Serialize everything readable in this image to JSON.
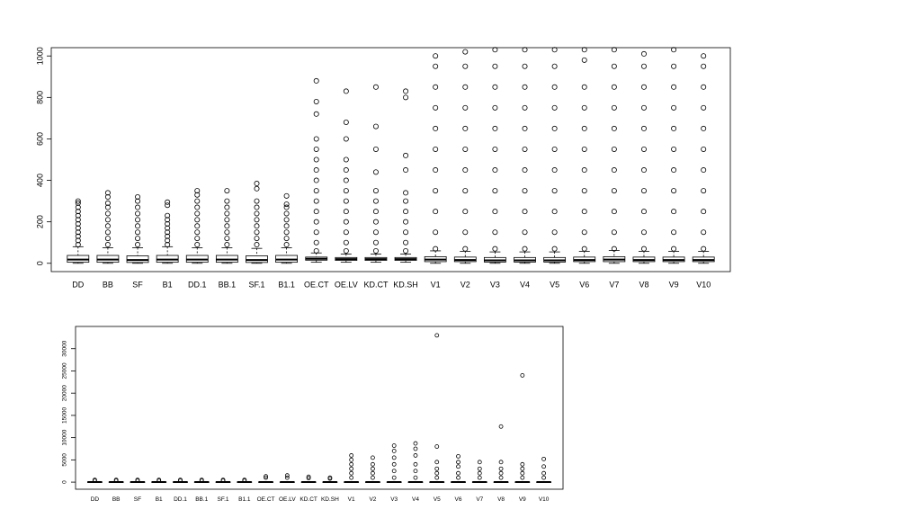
{
  "chart_data": [
    {
      "type": "box",
      "categories": [
        "DD",
        "BB",
        "SF",
        "B1",
        "DD.1",
        "BB.1",
        "SF.1",
        "B1.1",
        "OE.CT",
        "OE.LV",
        "KD.CT",
        "KD.SH",
        "V1",
        "V2",
        "V3",
        "V4",
        "V5",
        "V6",
        "V7",
        "V8",
        "V9",
        "V10"
      ],
      "ylim": [
        -40,
        1040
      ],
      "yticks": [
        0,
        200,
        400,
        600,
        800,
        1000
      ],
      "boxes": [
        {
          "low": 0,
          "q1": 5,
          "median": 18,
          "q3": 38,
          "high": 80,
          "outliers": [
            90,
            110,
            130,
            150,
            170,
            190,
            210,
            230,
            250,
            270,
            290,
            300
          ]
        },
        {
          "low": 0,
          "q1": 5,
          "median": 18,
          "q3": 38,
          "high": 75,
          "outliers": [
            90,
            120,
            150,
            180,
            210,
            240,
            270,
            290,
            320,
            340
          ]
        },
        {
          "low": 0,
          "q1": 4,
          "median": 16,
          "q3": 36,
          "high": 75,
          "outliers": [
            90,
            120,
            150,
            180,
            210,
            240,
            270,
            300,
            320
          ]
        },
        {
          "low": 0,
          "q1": 5,
          "median": 18,
          "q3": 38,
          "high": 80,
          "outliers": [
            90,
            110,
            130,
            150,
            170,
            190,
            210,
            230,
            280,
            295
          ]
        },
        {
          "low": 0,
          "q1": 5,
          "median": 18,
          "q3": 38,
          "high": 75,
          "outliers": [
            90,
            120,
            150,
            180,
            210,
            240,
            270,
            300,
            330,
            350
          ]
        },
        {
          "low": 0,
          "q1": 5,
          "median": 18,
          "q3": 38,
          "high": 75,
          "outliers": [
            90,
            120,
            150,
            180,
            210,
            240,
            270,
            300,
            350
          ]
        },
        {
          "low": 0,
          "q1": 4,
          "median": 16,
          "q3": 36,
          "high": 72,
          "outliers": [
            90,
            120,
            150,
            180,
            210,
            240,
            270,
            300,
            360,
            385
          ]
        },
        {
          "low": 0,
          "q1": 5,
          "median": 18,
          "q3": 38,
          "high": 75,
          "outliers": [
            90,
            120,
            150,
            180,
            210,
            240,
            270,
            285,
            325
          ]
        },
        {
          "low": 5,
          "q1": 15,
          "median": 22,
          "q3": 30,
          "high": 50,
          "outliers": [
            60,
            100,
            150,
            200,
            250,
            300,
            350,
            400,
            450,
            500,
            550,
            600,
            720,
            780,
            880
          ]
        },
        {
          "low": 5,
          "q1": 14,
          "median": 20,
          "q3": 28,
          "high": 45,
          "outliers": [
            60,
            100,
            150,
            200,
            250,
            300,
            350,
            400,
            450,
            500,
            600,
            680,
            830
          ]
        },
        {
          "low": 5,
          "q1": 14,
          "median": 20,
          "q3": 28,
          "high": 45,
          "outliers": [
            60,
            100,
            150,
            200,
            250,
            300,
            350,
            440,
            550,
            660,
            850
          ]
        },
        {
          "low": 5,
          "q1": 14,
          "median": 20,
          "q3": 28,
          "high": 45,
          "outliers": [
            60,
            100,
            150,
            200,
            250,
            300,
            340,
            450,
            520,
            800,
            830
          ]
        },
        {
          "low": 0,
          "q1": 8,
          "median": 18,
          "q3": 32,
          "high": 60,
          "outliers": [
            70,
            150,
            250,
            350,
            450,
            550,
            650,
            750,
            850,
            950,
            1000
          ]
        },
        {
          "low": 0,
          "q1": 8,
          "median": 16,
          "q3": 30,
          "high": 58,
          "outliers": [
            70,
            150,
            250,
            350,
            450,
            550,
            650,
            750,
            850,
            950,
            1020
          ]
        },
        {
          "low": 0,
          "q1": 6,
          "median": 14,
          "q3": 28,
          "high": 55,
          "outliers": [
            70,
            150,
            250,
            350,
            450,
            550,
            650,
            750,
            850,
            950,
            1030
          ]
        },
        {
          "low": 0,
          "q1": 6,
          "median": 14,
          "q3": 28,
          "high": 55,
          "outliers": [
            70,
            150,
            250,
            350,
            450,
            550,
            650,
            750,
            850,
            950,
            1030
          ]
        },
        {
          "low": 0,
          "q1": 6,
          "median": 14,
          "q3": 28,
          "high": 55,
          "outliers": [
            70,
            150,
            250,
            350,
            450,
            550,
            650,
            750,
            850,
            950,
            1030
          ]
        },
        {
          "low": 0,
          "q1": 8,
          "median": 16,
          "q3": 30,
          "high": 58,
          "outliers": [
            70,
            150,
            250,
            350,
            450,
            550,
            650,
            750,
            850,
            980,
            1030
          ]
        },
        {
          "low": 0,
          "q1": 8,
          "median": 18,
          "q3": 32,
          "high": 62,
          "outliers": [
            70,
            150,
            250,
            350,
            450,
            550,
            650,
            750,
            850,
            950,
            1030
          ]
        },
        {
          "low": 0,
          "q1": 8,
          "median": 16,
          "q3": 30,
          "high": 58,
          "outliers": [
            70,
            150,
            250,
            350,
            450,
            550,
            650,
            750,
            850,
            950,
            1010
          ]
        },
        {
          "low": 0,
          "q1": 8,
          "median": 16,
          "q3": 30,
          "high": 58,
          "outliers": [
            70,
            150,
            250,
            350,
            450,
            550,
            650,
            750,
            850,
            950,
            1030
          ]
        },
        {
          "low": 0,
          "q1": 8,
          "median": 16,
          "q3": 30,
          "high": 58,
          "outliers": [
            70,
            150,
            250,
            350,
            450,
            550,
            650,
            750,
            850,
            950,
            1000
          ]
        }
      ]
    },
    {
      "type": "box",
      "categories": [
        "DD",
        "BB",
        "SF",
        "B1",
        "DD.1",
        "BB.1",
        "SF.1",
        "B1.1",
        "OE.CT",
        "OE.LV",
        "KD.CT",
        "KD.SH",
        "V1",
        "V2",
        "V3",
        "V4",
        "V5",
        "V6",
        "V7",
        "V8",
        "V9",
        "V10"
      ],
      "ylim": [
        -1600,
        35000
      ],
      "yticks": [
        0,
        5000,
        10000,
        15000,
        20000,
        25000,
        30000
      ],
      "boxes": [
        {
          "low": 0,
          "q1": 5,
          "median": 18,
          "q3": 38,
          "high": 80,
          "outliers": [
            300,
            500
          ]
        },
        {
          "low": 0,
          "q1": 5,
          "median": 18,
          "q3": 38,
          "high": 75,
          "outliers": [
            300,
            500
          ]
        },
        {
          "low": 0,
          "q1": 4,
          "median": 16,
          "q3": 36,
          "high": 75,
          "outliers": [
            300,
            500
          ]
        },
        {
          "low": 0,
          "q1": 5,
          "median": 18,
          "q3": 38,
          "high": 80,
          "outliers": [
            300,
            500
          ]
        },
        {
          "low": 0,
          "q1": 5,
          "median": 18,
          "q3": 38,
          "high": 75,
          "outliers": [
            300,
            500
          ]
        },
        {
          "low": 0,
          "q1": 5,
          "median": 18,
          "q3": 38,
          "high": 75,
          "outliers": [
            300,
            500
          ]
        },
        {
          "low": 0,
          "q1": 4,
          "median": 16,
          "q3": 36,
          "high": 72,
          "outliers": [
            300,
            500
          ]
        },
        {
          "low": 0,
          "q1": 5,
          "median": 18,
          "q3": 38,
          "high": 75,
          "outliers": [
            300,
            500
          ]
        },
        {
          "low": 5,
          "q1": 15,
          "median": 22,
          "q3": 30,
          "high": 50,
          "outliers": [
            1000,
            1300
          ]
        },
        {
          "low": 5,
          "q1": 14,
          "median": 20,
          "q3": 28,
          "high": 45,
          "outliers": [
            1000,
            1500
          ]
        },
        {
          "low": 5,
          "q1": 14,
          "median": 20,
          "q3": 28,
          "high": 45,
          "outliers": [
            900,
            1200
          ]
        },
        {
          "low": 5,
          "q1": 14,
          "median": 20,
          "q3": 28,
          "high": 45,
          "outliers": [
            800,
            1000
          ]
        },
        {
          "low": 0,
          "q1": 8,
          "median": 18,
          "q3": 32,
          "high": 60,
          "outliers": [
            1000,
            2000,
            3000,
            4000,
            5000,
            6000
          ]
        },
        {
          "low": 0,
          "q1": 8,
          "median": 16,
          "q3": 30,
          "high": 58,
          "outliers": [
            1000,
            2000,
            3000,
            4000,
            5500
          ]
        },
        {
          "low": 0,
          "q1": 6,
          "median": 14,
          "q3": 28,
          "high": 55,
          "outliers": [
            1000,
            2500,
            4000,
            5500,
            7000,
            8200
          ]
        },
        {
          "low": 0,
          "q1": 6,
          "median": 14,
          "q3": 28,
          "high": 55,
          "outliers": [
            1000,
            2500,
            4000,
            6000,
            7500,
            8700
          ]
        },
        {
          "low": 0,
          "q1": 6,
          "median": 14,
          "q3": 28,
          "high": 55,
          "outliers": [
            1000,
            2000,
            3000,
            4500,
            8000,
            33000
          ]
        },
        {
          "low": 0,
          "q1": 8,
          "median": 16,
          "q3": 30,
          "high": 58,
          "outliers": [
            1000,
            2000,
            3500,
            4500,
            5800
          ]
        },
        {
          "low": 0,
          "q1": 8,
          "median": 18,
          "q3": 32,
          "high": 62,
          "outliers": [
            1000,
            2000,
            3000,
            4500
          ]
        },
        {
          "low": 0,
          "q1": 8,
          "median": 16,
          "q3": 30,
          "high": 58,
          "outliers": [
            1000,
            2000,
            3000,
            4500,
            12500
          ]
        },
        {
          "low": 0,
          "q1": 8,
          "median": 16,
          "q3": 30,
          "high": 58,
          "outliers": [
            1000,
            2000,
            3000,
            4000,
            24000
          ]
        },
        {
          "low": 0,
          "q1": 8,
          "median": 16,
          "q3": 30,
          "high": 58,
          "outliers": [
            1000,
            2000,
            3500,
            5200
          ]
        }
      ]
    }
  ]
}
